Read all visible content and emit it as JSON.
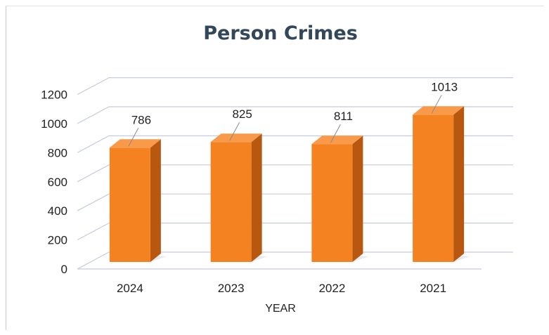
{
  "chart_data": {
    "type": "bar",
    "title": "Person Crimes",
    "xlabel": "YEAR",
    "ylabel": "",
    "categories": [
      "2024",
      "2023",
      "2022",
      "2021"
    ],
    "values": [
      786,
      825,
      811,
      1013
    ],
    "ylim": [
      0,
      1200
    ],
    "yticks": [
      "0",
      "200",
      "400",
      "600",
      "800",
      "1000",
      "1200"
    ],
    "grid": true,
    "legend": "none",
    "colors": {
      "bar_front": "#f58220",
      "bar_side": "#b8570f",
      "bar_top": "#f89a4a",
      "grid": "#c5cbdc"
    }
  }
}
